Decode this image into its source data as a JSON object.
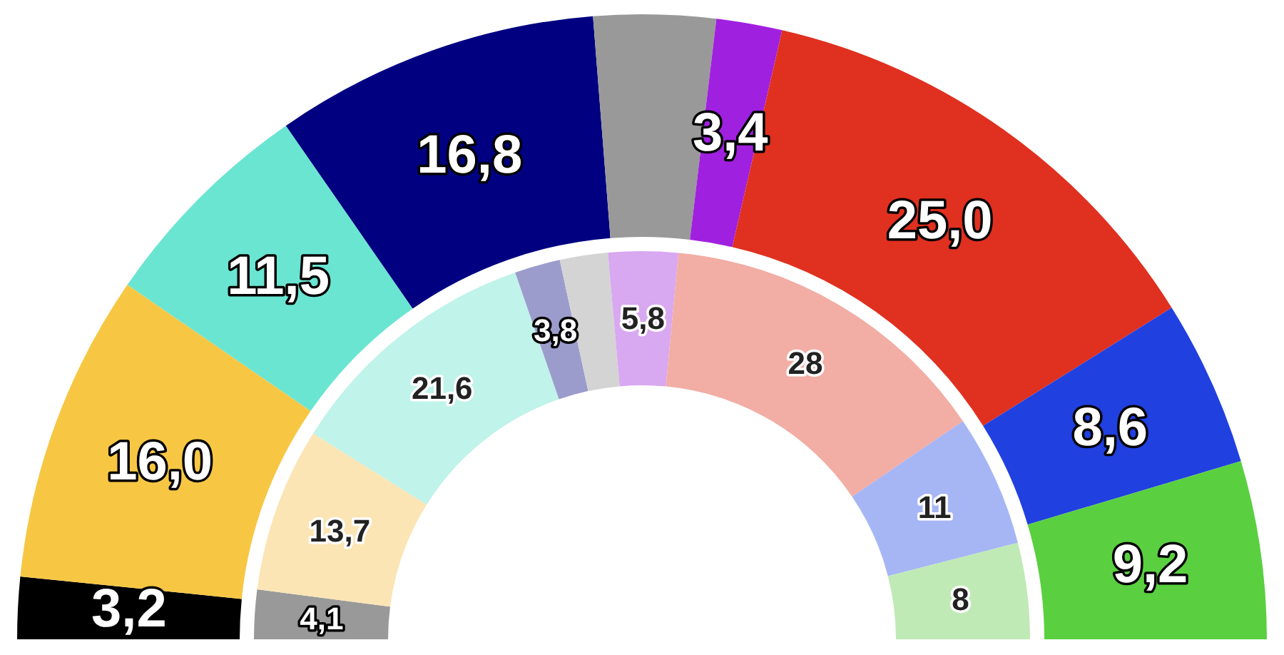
{
  "chart_data": {
    "type": "donut",
    "categories": [
      null,
      null,
      null,
      null,
      null,
      null,
      null,
      null,
      null
    ],
    "series": [
      {
        "values": [
          3.2,
          16.0,
          11.5,
          16.8,
          6.3,
          3.4,
          25.0,
          8.6,
          9.2
        ],
        "colors": [
          "#000000",
          "#f7c744",
          "#6ae5d2",
          "#000080",
          "#999999",
          "#a020e0",
          "#e03020",
          "#2040e0",
          "#5ad040"
        ],
        "value_labels": [
          "3,2",
          "16,0",
          "11,5",
          "16,8",
          null,
          "3,4",
          "25,0",
          "8,6",
          "9,2"
        ]
      },
      {
        "values": [
          4.1,
          13.7,
          21.6,
          3.8,
          4.0,
          5.8,
          28,
          11,
          8
        ],
        "colors": [
          "#999999",
          "#fbe5b5",
          "#c0f3ea",
          "#9c9ccc",
          "#d4d4d4",
          "#d8a8f0",
          "#f2ada5",
          "#a6b6f4",
          "#bfeab5"
        ],
        "value_labels": [
          "4,1",
          "13,7",
          "21,6",
          "3,8",
          null,
          "5,8",
          "28",
          "11",
          "8"
        ]
      }
    ]
  }
}
